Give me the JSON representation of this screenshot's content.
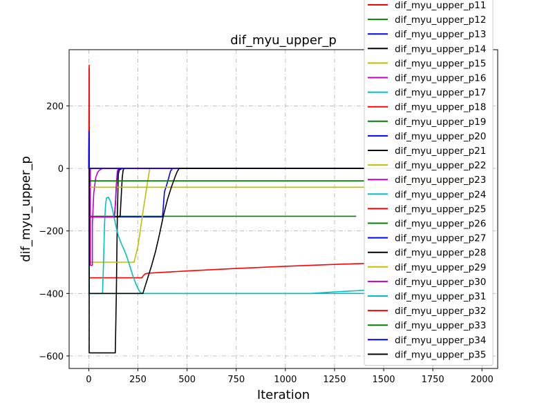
{
  "chart_data": {
    "type": "line",
    "title": "dif_myu_upper_p",
    "xlabel": "Iteration",
    "ylabel": "dif_myu_upper_p",
    "xlim": [
      -100,
      2080
    ],
    "ylim": [
      -640,
      380
    ],
    "xticks": [
      0,
      250,
      500,
      750,
      1000,
      1250,
      1500,
      1750,
      2000
    ],
    "yticks": [
      -600,
      -400,
      -200,
      0,
      200
    ],
    "xtick_labels": [
      "0",
      "250",
      "500",
      "750",
      "1000",
      "1250",
      "1500",
      "1750",
      "2000"
    ],
    "ytick_labels": [
      "−600",
      "−400",
      "−200",
      "0",
      "200"
    ],
    "grid": true,
    "grid_style": "dash-dot",
    "legend_position": "upper right",
    "series": [
      {
        "name": "dif_myu_upper_p11",
        "color": "#ff0000",
        "x": [
          0,
          2,
          2,
          2000
        ],
        "y": [
          0,
          330,
          0,
          0
        ]
      },
      {
        "name": "dif_myu_upper_p12",
        "color": "#008000",
        "x": [
          0,
          2,
          2,
          2000
        ],
        "y": [
          0,
          180,
          0,
          0
        ]
      },
      {
        "name": "dif_myu_upper_p13",
        "color": "#0000ff",
        "x": [
          0,
          2,
          2,
          2000
        ],
        "y": [
          0,
          130,
          0,
          0
        ]
      },
      {
        "name": "dif_myu_upper_p14",
        "color": "#000000",
        "x": [
          0,
          2000
        ],
        "y": [
          0,
          0
        ]
      },
      {
        "name": "dif_myu_upper_p15",
        "color": "#bfbf00",
        "x": [
          0,
          2000
        ],
        "y": [
          -60,
          -60
        ]
      },
      {
        "name": "dif_myu_upper_p16",
        "color": "#bf00bf",
        "x": [
          0,
          2000
        ],
        "y": [
          0,
          0
        ]
      },
      {
        "name": "dif_myu_upper_p17",
        "color": "#00bfbf",
        "x": [
          0,
          2000
        ],
        "y": [
          0,
          0
        ]
      },
      {
        "name": "dif_myu_upper_p18",
        "color": "#ff0000",
        "x": [
          0,
          2,
          2,
          270,
          275,
          285,
          300,
          500,
          750,
          1000,
          1250,
          1500
        ],
        "y": [
          0,
          320,
          -350,
          -350,
          -345,
          -338,
          -335,
          -328,
          -320,
          -313,
          -307,
          -302
        ]
      },
      {
        "name": "dif_myu_upper_p19",
        "color": "#008000",
        "x": [
          0,
          1360
        ],
        "y": [
          -153,
          -153
        ]
      },
      {
        "name": "dif_myu_upper_p20",
        "color": "#0000ff",
        "x": [
          0,
          2,
          2,
          375,
          385,
          400,
          415,
          425,
          2000
        ],
        "y": [
          0,
          120,
          -155,
          -155,
          -75,
          -45,
          -10,
          0,
          0
        ]
      },
      {
        "name": "dif_myu_upper_p21",
        "color": "#000000",
        "x": [
          0,
          2,
          2,
          135,
          140,
          145,
          150,
          155,
          170,
          2000
        ],
        "y": [
          0,
          0,
          -590,
          -590,
          -400,
          -160,
          -20,
          -5,
          0,
          0
        ]
      },
      {
        "name": "dif_myu_upper_p22",
        "color": "#bfbf00",
        "x": [
          0,
          2,
          2,
          230,
          250,
          280,
          310,
          2000
        ],
        "y": [
          0,
          0,
          -300,
          -300,
          -250,
          -120,
          0,
          0
        ]
      },
      {
        "name": "dif_myu_upper_p23",
        "color": "#bf00bf",
        "x": [
          0,
          8,
          8,
          18,
          18,
          25,
          35,
          45,
          55,
          70,
          2000
        ],
        "y": [
          0,
          0,
          -310,
          -310,
          -180,
          -80,
          -30,
          -12,
          -5,
          0,
          0
        ]
      },
      {
        "name": "dif_myu_upper_p24",
        "color": "#00bfbf",
        "x": [
          0,
          2,
          2,
          70,
          75,
          80,
          85,
          90,
          100,
          110,
          120,
          130,
          140,
          150,
          165,
          180,
          195,
          210,
          225,
          240,
          255,
          265,
          272,
          277,
          285,
          2000
        ],
        "y": [
          0,
          0,
          -400,
          -400,
          -300,
          -180,
          -120,
          -95,
          -92,
          -105,
          -130,
          -160,
          -190,
          -215,
          -240,
          -260,
          -285,
          -315,
          -345,
          -370,
          -390,
          -398,
          -400,
          -400,
          -400,
          -400
        ]
      },
      {
        "name": "dif_myu_upper_p25",
        "color": "#ff0000",
        "x": [
          0,
          2000
        ],
        "y": [
          0,
          0
        ]
      },
      {
        "name": "dif_myu_upper_p26",
        "color": "#008000",
        "x": [
          0,
          2000
        ],
        "y": [
          -40,
          -40
        ]
      },
      {
        "name": "dif_myu_upper_p27",
        "color": "#0000ff",
        "x": [
          0,
          2,
          2,
          130,
          135,
          140,
          145,
          150,
          155,
          165,
          2000
        ],
        "y": [
          0,
          0,
          -155,
          -155,
          -120,
          -60,
          -20,
          -8,
          -2,
          0,
          0
        ]
      },
      {
        "name": "dif_myu_upper_p28",
        "color": "#000000",
        "x": [
          0,
          2,
          2,
          155,
          160,
          170,
          175,
          180,
          2000
        ],
        "y": [
          0,
          0,
          -155,
          -155,
          -150,
          -30,
          -5,
          0,
          0
        ]
      },
      {
        "name": "dif_myu_upper_p29",
        "color": "#bfbf00",
        "x": [
          0,
          2000
        ],
        "y": [
          -60,
          -60
        ]
      },
      {
        "name": "dif_myu_upper_p30",
        "color": "#bf00bf",
        "x": [
          0,
          2,
          2,
          130,
          135,
          140,
          145,
          150,
          2000
        ],
        "y": [
          0,
          0,
          -155,
          -155,
          -120,
          -50,
          -10,
          0,
          0
        ]
      },
      {
        "name": "dif_myu_upper_p31",
        "color": "#00bfbf",
        "x": [
          0,
          2,
          2,
          1130,
          1250,
          1400,
          1550
        ],
        "y": [
          0,
          0,
          -400,
          -400,
          -395,
          -390,
          -385
        ]
      },
      {
        "name": "dif_myu_upper_p32",
        "color": "#ff0000",
        "x": [
          0,
          2000
        ],
        "y": [
          0,
          0
        ]
      },
      {
        "name": "dif_myu_upper_p33",
        "color": "#008000",
        "x": [
          0,
          1550
        ],
        "y": [
          -40,
          -40
        ]
      },
      {
        "name": "dif_myu_upper_p34",
        "color": "#0000ff",
        "x": [
          0,
          2000
        ],
        "y": [
          0,
          0
        ]
      },
      {
        "name": "dif_myu_upper_p35",
        "color": "#000000",
        "x": [
          0,
          2,
          2,
          275,
          285,
          300,
          320,
          340,
          360,
          380,
          400,
          420,
          440,
          450,
          460,
          2000
        ],
        "y": [
          0,
          0,
          -400,
          -400,
          -380,
          -350,
          -310,
          -265,
          -210,
          -150,
          -100,
          -60,
          -25,
          -10,
          0,
          0
        ]
      }
    ]
  }
}
